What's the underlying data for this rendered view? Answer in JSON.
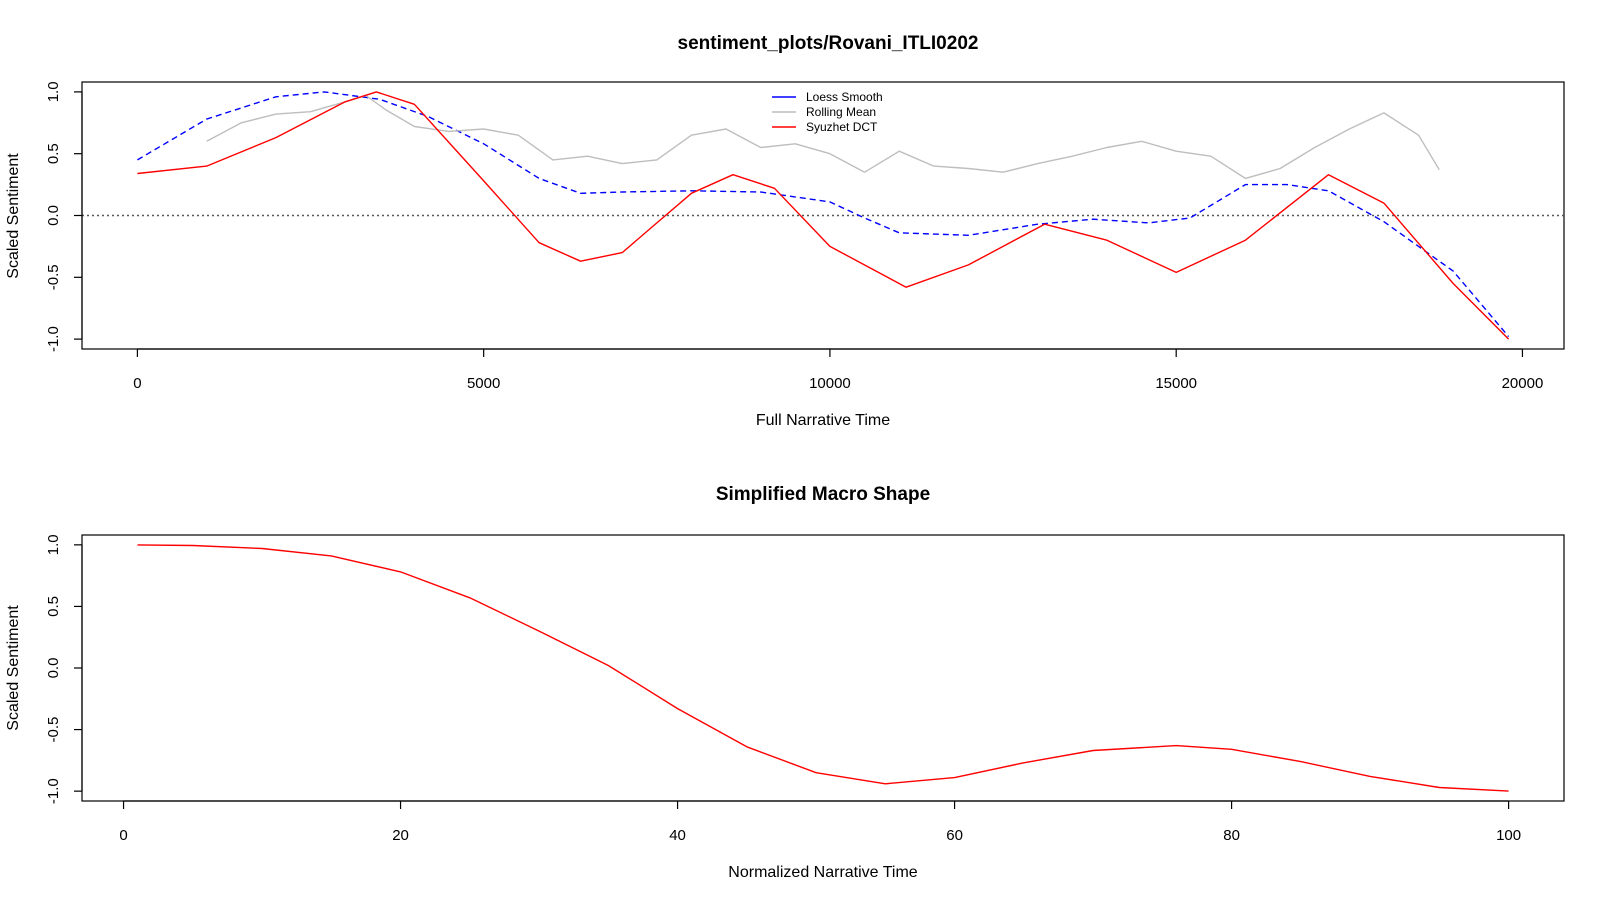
{
  "chart_data": [
    {
      "type": "line",
      "title": "sentiment_plots/Rovani_ITLI0202",
      "xlabel": "Full Narrative Time",
      "ylabel": "Scaled Sentiment",
      "xlim": [
        -800,
        20600
      ],
      "ylim": [
        -1.08,
        1.08
      ],
      "xticks": [
        0,
        5000,
        10000,
        15000,
        20000
      ],
      "yticks": [
        -1.0,
        -0.5,
        0.0,
        0.5,
        1.0
      ],
      "hline": 0,
      "legend_position": "top-center",
      "series": [
        {
          "name": "Loess Smooth",
          "color": "#0000ff",
          "style": "dashed",
          "x": [
            0,
            1000,
            2000,
            2700,
            3500,
            4200,
            5000,
            5800,
            6400,
            7000,
            8000,
            9000,
            10000,
            10500,
            11000,
            12000,
            13000,
            13800,
            14600,
            15200,
            16000,
            16600,
            17200,
            18000,
            19000,
            19800
          ],
          "y": [
            0.45,
            0.78,
            0.96,
            1.0,
            0.94,
            0.8,
            0.58,
            0.3,
            0.18,
            0.19,
            0.2,
            0.19,
            0.11,
            -0.02,
            -0.14,
            -0.16,
            -0.07,
            -0.03,
            -0.06,
            -0.02,
            0.25,
            0.25,
            0.2,
            -0.05,
            -0.45,
            -0.98
          ]
        },
        {
          "name": "Rolling Mean",
          "color": "#bebebe",
          "style": "solid",
          "x": [
            1000,
            1500,
            2000,
            2500,
            3000,
            3300,
            3600,
            4000,
            4500,
            5000,
            5500,
            6000,
            6500,
            7000,
            7500,
            8000,
            8500,
            9000,
            9500,
            10000,
            10500,
            11000,
            11500,
            12000,
            12500,
            13000,
            13500,
            14000,
            14500,
            15000,
            15500,
            16000,
            16500,
            17000,
            17500,
            18000,
            18500,
            18800
          ],
          "y": [
            0.6,
            0.75,
            0.82,
            0.84,
            0.92,
            0.97,
            0.85,
            0.72,
            0.68,
            0.7,
            0.65,
            0.45,
            0.48,
            0.42,
            0.45,
            0.65,
            0.7,
            0.55,
            0.58,
            0.5,
            0.35,
            0.52,
            0.4,
            0.38,
            0.35,
            0.42,
            0.48,
            0.55,
            0.6,
            0.52,
            0.48,
            0.3,
            0.38,
            0.55,
            0.7,
            0.83,
            0.65,
            0.37
          ]
        },
        {
          "name": "Syuzhet DCT",
          "color": "#ff0000",
          "style": "solid",
          "x": [
            0,
            1000,
            2000,
            3000,
            3450,
            4000,
            5000,
            5800,
            6400,
            7000,
            8000,
            8600,
            9200,
            10000,
            11100,
            12000,
            13100,
            14000,
            15000,
            16000,
            17200,
            18000,
            19000,
            19800
          ],
          "y": [
            0.34,
            0.4,
            0.63,
            0.92,
            1.0,
            0.9,
            0.28,
            -0.22,
            -0.37,
            -0.3,
            0.18,
            0.33,
            0.22,
            -0.25,
            -0.58,
            -0.4,
            -0.07,
            -0.2,
            -0.46,
            -0.2,
            0.33,
            0.1,
            -0.55,
            -1.0
          ]
        }
      ]
    },
    {
      "type": "line",
      "title": "Simplified Macro Shape",
      "xlabel": "Normalized Narrative Time",
      "ylabel": "Scaled Sentiment",
      "xlim": [
        -3,
        104
      ],
      "ylim": [
        -1.08,
        1.08
      ],
      "xticks": [
        0,
        20,
        40,
        60,
        80,
        100
      ],
      "yticks": [
        -1.0,
        -0.5,
        0.0,
        0.5,
        1.0
      ],
      "series": [
        {
          "color": "#ff0000",
          "style": "solid",
          "x": [
            1,
            5,
            10,
            15,
            20,
            25,
            30,
            35,
            40,
            45,
            50,
            55,
            60,
            65,
            70,
            76,
            80,
            85,
            90,
            95,
            100
          ],
          "y": [
            1.0,
            0.995,
            0.97,
            0.91,
            0.78,
            0.57,
            0.3,
            0.02,
            -0.33,
            -0.64,
            -0.85,
            -0.94,
            -0.89,
            -0.77,
            -0.67,
            -0.63,
            -0.66,
            -0.76,
            -0.88,
            -0.97,
            -1.0
          ]
        }
      ]
    }
  ]
}
